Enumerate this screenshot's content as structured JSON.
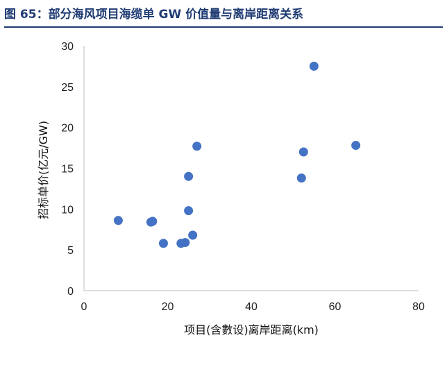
{
  "figure": {
    "title": "图 65：部分海风项目海缆单 GW 价值量与离岸距离关系"
  },
  "chart_data": {
    "type": "scatter",
    "title": "",
    "xlabel": "项目(含數设)离岸距离(km)",
    "ylabel": "招标单价(亿元/GW)",
    "xlim": [
      0,
      80
    ],
    "ylim": [
      0,
      30
    ],
    "xticks": [
      0,
      20,
      40,
      60,
      80
    ],
    "yticks": [
      0,
      5,
      10,
      15,
      20,
      25,
      30
    ],
    "grid": false,
    "legend": "none",
    "marker_color": "#4472c4",
    "series": [
      {
        "points": [
          {
            "x": 8.2,
            "y": 8.6
          },
          {
            "x": 16.0,
            "y": 8.4
          },
          {
            "x": 16.4,
            "y": 8.5
          },
          {
            "x": 19.0,
            "y": 5.8
          },
          {
            "x": 23.2,
            "y": 5.8
          },
          {
            "x": 24.2,
            "y": 5.9
          },
          {
            "x": 25.0,
            "y": 9.8
          },
          {
            "x": 25.0,
            "y": 14.0
          },
          {
            "x": 26.0,
            "y": 6.8
          },
          {
            "x": 27.0,
            "y": 17.7
          },
          {
            "x": 52.0,
            "y": 13.8
          },
          {
            "x": 52.5,
            "y": 17.0
          },
          {
            "x": 55.0,
            "y": 27.5
          },
          {
            "x": 65.0,
            "y": 17.8
          }
        ]
      }
    ]
  }
}
